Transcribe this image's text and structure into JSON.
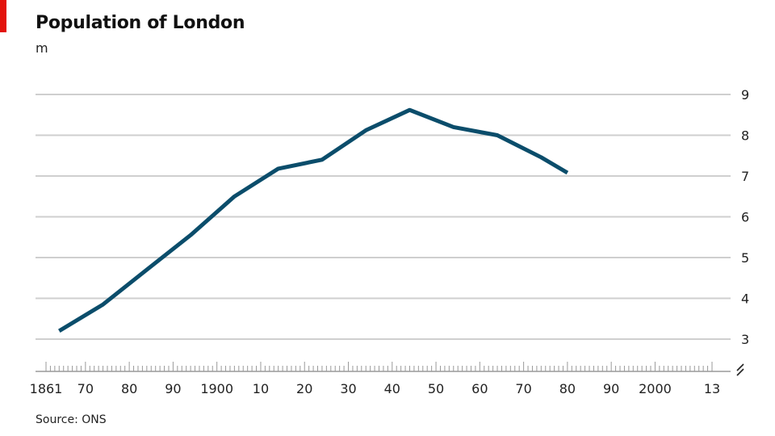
{
  "header": {
    "title": "Population of London",
    "unit": "m"
  },
  "footer": {
    "source": "Source: ONS"
  },
  "colors": {
    "accent": "#e3120b",
    "line": "#0b4d6b",
    "grid": "#cfcfcf",
    "axis": "#9a9a9a"
  },
  "chart_data": {
    "type": "line",
    "title": "Population of London",
    "ylabel": "m",
    "xlabel": "",
    "xlim": [
      1861,
      2013
    ],
    "ylim": [
      3,
      9
    ],
    "y_ticks": [
      3,
      4,
      5,
      6,
      7,
      8,
      9
    ],
    "x_ticks": [
      {
        "value": 1861,
        "label": "1861"
      },
      {
        "value": 1870,
        "label": "70"
      },
      {
        "value": 1880,
        "label": "80"
      },
      {
        "value": 1890,
        "label": "90"
      },
      {
        "value": 1900,
        "label": "1900"
      },
      {
        "value": 1910,
        "label": "10"
      },
      {
        "value": 1920,
        "label": "20"
      },
      {
        "value": 1930,
        "label": "30"
      },
      {
        "value": 1940,
        "label": "40"
      },
      {
        "value": 1950,
        "label": "50"
      },
      {
        "value": 1960,
        "label": "60"
      },
      {
        "value": 1970,
        "label": "70"
      },
      {
        "value": 1980,
        "label": "80"
      },
      {
        "value": 1990,
        "label": "90"
      },
      {
        "value": 2000,
        "label": "2000"
      },
      {
        "value": 2013,
        "label": "13"
      }
    ],
    "grid": true,
    "y_axis_side": "right",
    "axis_break": true,
    "series": [
      {
        "x": [
          1864,
          1874,
          1884,
          1894,
          1904,
          1914,
          1924,
          1934,
          1944,
          1954,
          1964,
          1974,
          1980
        ],
        "y": [
          3.2,
          3.85,
          4.7,
          5.55,
          6.5,
          7.18,
          7.4,
          8.12,
          8.62,
          8.2,
          8.0,
          7.46,
          7.08
        ]
      }
    ]
  }
}
